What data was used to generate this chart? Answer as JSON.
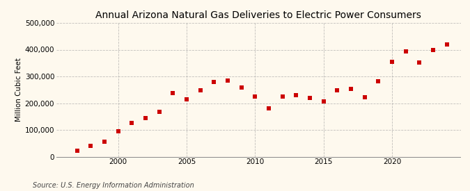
{
  "title": "Annual Arizona Natural Gas Deliveries to Electric Power Consumers",
  "ylabel": "Million Cubic Feet",
  "source": "Source: U.S. Energy Information Administration",
  "background_color": "#fef9ee",
  "plot_bg_color": "#fef9ee",
  "marker_color": "#cc0000",
  "years": [
    1997,
    1998,
    1999,
    2000,
    2001,
    2002,
    2003,
    2004,
    2005,
    2006,
    2007,
    2008,
    2009,
    2010,
    2011,
    2012,
    2013,
    2014,
    2015,
    2016,
    2017,
    2018,
    2019,
    2020,
    2021,
    2022,
    2023,
    2024
  ],
  "values": [
    22000,
    40000,
    55000,
    95000,
    125000,
    145000,
    168000,
    238000,
    215000,
    248000,
    278000,
    285000,
    258000,
    225000,
    180000,
    225000,
    230000,
    220000,
    207000,
    247000,
    253000,
    222000,
    283000,
    355000,
    393000,
    353000,
    400000,
    420000
  ],
  "ylim": [
    0,
    500000
  ],
  "yticks": [
    0,
    100000,
    200000,
    300000,
    400000,
    500000
  ],
  "ytick_labels": [
    "0",
    "100,000",
    "200,000",
    "300,000",
    "400,000",
    "500,000"
  ],
  "xlim": [
    1995.5,
    2025
  ],
  "xticks": [
    2000,
    2005,
    2010,
    2015,
    2020
  ],
  "title_fontsize": 10,
  "label_fontsize": 7.5,
  "tick_fontsize": 7.5,
  "source_fontsize": 7,
  "marker_size": 4,
  "grid_color": "#999999",
  "grid_linestyle": "--",
  "grid_alpha": 0.6
}
